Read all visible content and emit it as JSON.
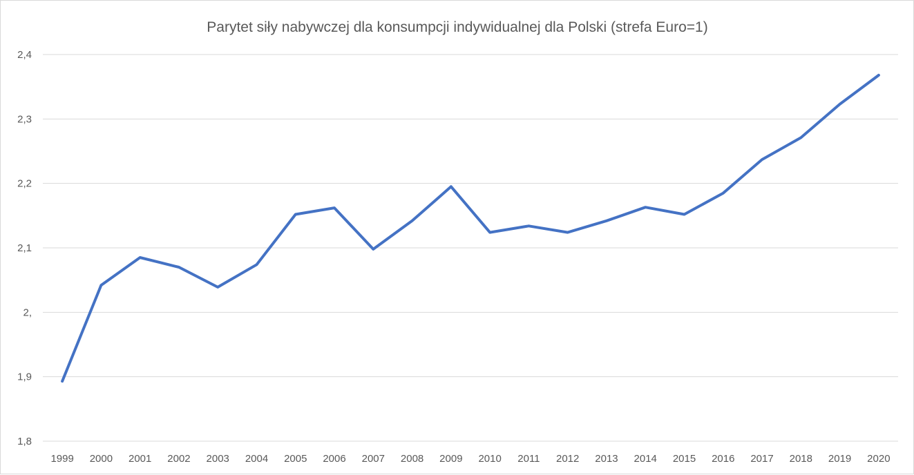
{
  "chart_data": {
    "type": "line",
    "title": "Parytet siły nabywczej dla konsumpcji indywidualnej dla Polski (strefa Euro=1)",
    "xlabel": "",
    "ylabel": "",
    "categories": [
      "1999",
      "2000",
      "2001",
      "2002",
      "2003",
      "2004",
      "2005",
      "2006",
      "2007",
      "2008",
      "2009",
      "2010",
      "2011",
      "2012",
      "2013",
      "2014",
      "2015",
      "2016",
      "2017",
      "2018",
      "2019",
      "2020"
    ],
    "series": [
      {
        "values": [
          1.893,
          2.042,
          2.085,
          2.07,
          2.039,
          2.074,
          2.152,
          2.162,
          2.098,
          2.142,
          2.195,
          2.124,
          2.134,
          2.124,
          2.142,
          2.163,
          2.152,
          2.185,
          2.237,
          2.271,
          2.323,
          2.368
        ],
        "color": "#4472c4"
      }
    ],
    "ylim": [
      1.8,
      2.4
    ],
    "yticks": [
      {
        "value": 1.8,
        "label": "1,8"
      },
      {
        "value": 1.9,
        "label": "1,9"
      },
      {
        "value": 2.0,
        "label": "2,"
      },
      {
        "value": 2.1,
        "label": "2,1"
      },
      {
        "value": 2.2,
        "label": "2,2"
      },
      {
        "value": 2.3,
        "label": "2,3"
      },
      {
        "value": 2.4,
        "label": "2,4"
      }
    ],
    "grid": true,
    "legend": "none",
    "gridline_color": "#d9d9d9"
  }
}
